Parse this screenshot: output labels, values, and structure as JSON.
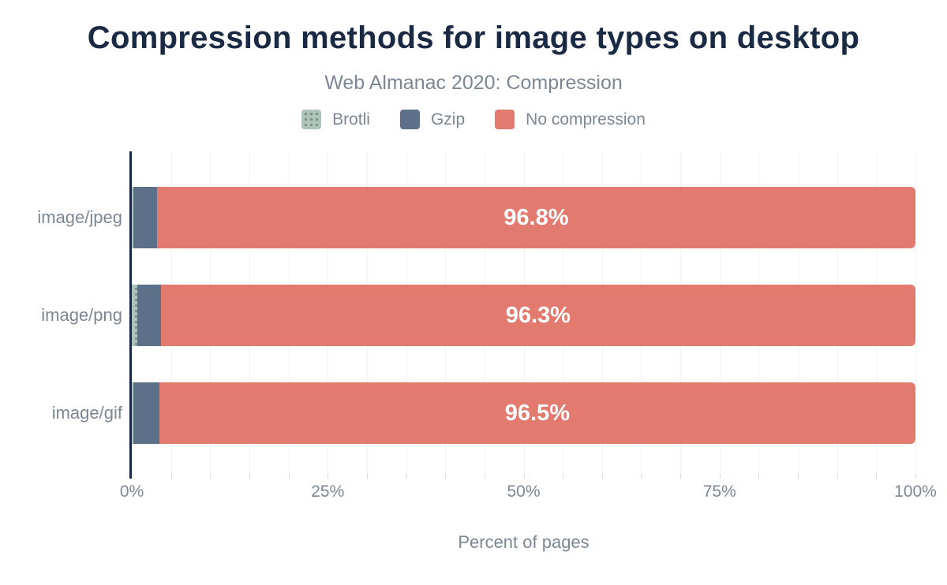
{
  "page": {
    "title": "Compression methods for image types on desktop",
    "subtitle": "Web Almanac 2020: Compression"
  },
  "chart_data": {
    "type": "bar",
    "orientation": "horizontal",
    "stacked": true,
    "title": "Compression methods for image types on desktop",
    "subtitle": "Web Almanac 2020: Compression",
    "categories": [
      "image/jpeg",
      "image/png",
      "image/gif"
    ],
    "series": [
      {
        "name": "Brotli",
        "color": "#aec3ba",
        "pattern": "dots",
        "values": [
          0.2,
          0.7,
          0.2
        ]
      },
      {
        "name": "Gzip",
        "color": "#5c7089",
        "pattern": "solid",
        "values": [
          3.0,
          3.0,
          3.3
        ]
      },
      {
        "name": "No compression",
        "color": "#e27a70",
        "pattern": "solid",
        "values": [
          96.8,
          96.3,
          96.5
        ]
      }
    ],
    "bar_value_labels": [
      "96.8%",
      "96.3%",
      "96.5%"
    ],
    "xlabel": "Percent of pages",
    "ylabel": "",
    "xlim": [
      0,
      100
    ],
    "x_major_ticks": [
      {
        "value": 0,
        "label": "0%"
      },
      {
        "value": 25,
        "label": "25%"
      },
      {
        "value": 50,
        "label": "50%"
      },
      {
        "value": 75,
        "label": "75%"
      },
      {
        "value": 100,
        "label": "100%"
      }
    ],
    "minor_grid_step_percent": 5,
    "grid": true,
    "legend_position": "top"
  },
  "colors": {
    "title": "#1a2a44",
    "axis_line": "#1a2a44",
    "muted_text": "#7b8794",
    "gridline": "#f2f2f5",
    "tick": "#d9dee5",
    "bar_label_text": "#ffffff",
    "background": "#ffffff"
  }
}
